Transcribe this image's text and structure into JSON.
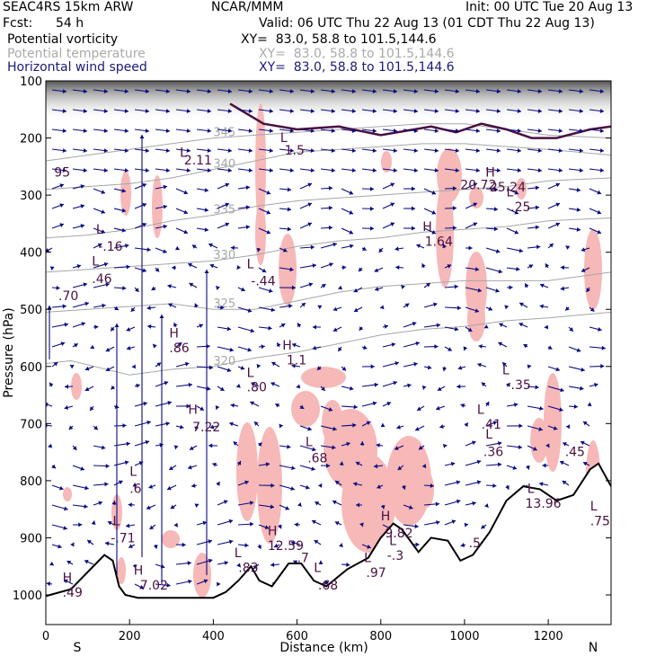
{
  "header": {
    "model": "SEAC4RS 15km ARW",
    "center": "NCAR/MMM",
    "init": "Init: 00 UTC Tue 20 Aug 13",
    "fcst_label": "Fcst:",
    "fcst_value": "54 h",
    "valid": "Valid: 06 UTC Thu 22 Aug 13 (01 CDT Thu 22 Aug 13)",
    "fields": [
      {
        "name": "Potential vorticity",
        "xy": "XY=  83.0, 58.8 to 101.5,144.6"
      },
      {
        "name": "Potential temperature",
        "xy": "XY=  83.0, 58.8 to 101.5,144.6"
      },
      {
        "name": "Horizontal wind speed",
        "xy": "XY=  83.0, 58.8 to 101.5,144.6"
      }
    ]
  },
  "colors": {
    "pv_fill": "#f7b8b8",
    "theta": "#a6a6a6",
    "wind": "#0a0a80",
    "pv_contour": "#4a1040",
    "terrain": "#000000"
  },
  "chart_data": {
    "type": "cross-section",
    "xlabel": "Distance (km)",
    "ylabel": "Pressure (hPa)",
    "xlim": [
      0,
      1350
    ],
    "ylim": [
      1050,
      100
    ],
    "x_ticks": [
      0,
      200,
      400,
      600,
      800,
      1000,
      1200
    ],
    "y_ticks": [
      100,
      200,
      300,
      400,
      500,
      600,
      700,
      800,
      900,
      1000
    ],
    "end_labels": {
      "left": "S",
      "right": "N"
    },
    "terrain": [
      [
        0,
        1002
      ],
      [
        60,
        990
      ],
      [
        100,
        960
      ],
      [
        140,
        930
      ],
      [
        160,
        940
      ],
      [
        175,
        985
      ],
      [
        190,
        1000
      ],
      [
        220,
        1005
      ],
      [
        300,
        1005
      ],
      [
        400,
        1005
      ],
      [
        430,
        995
      ],
      [
        460,
        975
      ],
      [
        490,
        950
      ],
      [
        510,
        975
      ],
      [
        540,
        985
      ],
      [
        580,
        945
      ],
      [
        610,
        945
      ],
      [
        640,
        975
      ],
      [
        670,
        985
      ],
      [
        720,
        955
      ],
      [
        770,
        935
      ],
      [
        800,
        900
      ],
      [
        830,
        875
      ],
      [
        850,
        885
      ],
      [
        870,
        905
      ],
      [
        890,
        925
      ],
      [
        920,
        900
      ],
      [
        960,
        905
      ],
      [
        990,
        940
      ],
      [
        1020,
        930
      ],
      [
        1060,
        890
      ],
      [
        1100,
        835
      ],
      [
        1140,
        810
      ],
      [
        1180,
        815
      ],
      [
        1220,
        835
      ],
      [
        1260,
        825
      ],
      [
        1300,
        780
      ],
      [
        1320,
        770
      ],
      [
        1350,
        810
      ]
    ],
    "theta_contours": [
      {
        "value": "320",
        "points": [
          [
            0,
            595
          ],
          [
            60,
            590
          ],
          [
            200,
            615
          ],
          [
            300,
            605
          ],
          [
            400,
            600
          ],
          [
            500,
            585
          ],
          [
            600,
            575
          ],
          [
            700,
            560
          ],
          [
            800,
            545
          ],
          [
            900,
            535
          ],
          [
            1000,
            530
          ],
          [
            1100,
            520
          ],
          [
            1200,
            515
          ],
          [
            1350,
            505
          ]
        ]
      },
      {
        "value": "325",
        "points": [
          [
            0,
            505
          ],
          [
            100,
            500
          ],
          [
            200,
            495
          ],
          [
            300,
            490
          ],
          [
            400,
            500
          ],
          [
            500,
            500
          ],
          [
            600,
            485
          ],
          [
            700,
            470
          ],
          [
            800,
            460
          ],
          [
            900,
            455
          ],
          [
            1000,
            450
          ],
          [
            1100,
            450
          ],
          [
            1200,
            450
          ],
          [
            1350,
            435
          ]
        ]
      },
      {
        "value": "330",
        "points": [
          [
            0,
            435
          ],
          [
            100,
            430
          ],
          [
            200,
            425
          ],
          [
            300,
            420
          ],
          [
            400,
            415
          ],
          [
            500,
            405
          ],
          [
            600,
            390
          ],
          [
            700,
            380
          ],
          [
            800,
            375
          ],
          [
            900,
            365
          ],
          [
            1000,
            360
          ],
          [
            1100,
            355
          ],
          [
            1200,
            345
          ],
          [
            1350,
            340
          ]
        ]
      },
      {
        "value": "335",
        "points": [
          [
            0,
            375
          ],
          [
            100,
            370
          ],
          [
            200,
            360
          ],
          [
            300,
            345
          ],
          [
            400,
            335
          ],
          [
            500,
            320
          ],
          [
            600,
            310
          ],
          [
            700,
            305
          ],
          [
            800,
            300
          ],
          [
            900,
            295
          ],
          [
            1000,
            290
          ],
          [
            1100,
            285
          ],
          [
            1200,
            275
          ],
          [
            1350,
            270
          ]
        ]
      },
      {
        "value": "340",
        "points": [
          [
            0,
            290
          ],
          [
            100,
            285
          ],
          [
            200,
            280
          ],
          [
            300,
            270
          ],
          [
            400,
            255
          ],
          [
            500,
            240
          ],
          [
            600,
            225
          ],
          [
            700,
            220
          ],
          [
            800,
            215
          ],
          [
            900,
            210
          ],
          [
            1000,
            210
          ],
          [
            1100,
            215
          ],
          [
            1200,
            220
          ],
          [
            1350,
            230
          ]
        ]
      },
      {
        "value": "345",
        "points": [
          [
            0,
            240
          ],
          [
            100,
            230
          ],
          [
            200,
            220
          ],
          [
            300,
            210
          ],
          [
            400,
            200
          ],
          [
            500,
            195
          ],
          [
            600,
            190
          ],
          [
            700,
            185
          ],
          [
            800,
            180
          ],
          [
            900,
            175
          ],
          [
            1000,
            175
          ],
          [
            1100,
            185
          ],
          [
            1200,
            195
          ],
          [
            1350,
            200
          ]
        ]
      }
    ],
    "pv_dynamic_tropopause": [
      [
        440,
        140
      ],
      [
        520,
        175
      ],
      [
        600,
        185
      ],
      [
        700,
        180
      ],
      [
        800,
        195
      ],
      [
        880,
        185
      ],
      [
        920,
        180
      ],
      [
        980,
        190
      ],
      [
        1040,
        175
      ],
      [
        1100,
        185
      ],
      [
        1160,
        200
      ],
      [
        1220,
        200
      ],
      [
        1300,
        185
      ],
      [
        1350,
        180
      ]
    ],
    "pv_labels": [
      {
        "text": "L",
        "x": 120,
        "y": 345
      },
      {
        "text": "-.16",
        "x": 125,
        "y": 380
      },
      {
        "text": "L",
        "x": 110,
        "y": 410
      },
      {
        "text": ".46",
        "x": 110,
        "y": 445
      },
      {
        "text": "L",
        "x": 480,
        "y": 415
      },
      {
        "text": "-.44",
        "x": 490,
        "y": 450
      },
      {
        "text": "H",
        "x": 295,
        "y": 555
      },
      {
        "text": ".86",
        "x": 295,
        "y": 585
      },
      {
        "text": "H",
        "x": 565,
        "y": 580
      },
      {
        "text": "1.1",
        "x": 575,
        "y": 610
      },
      {
        "text": "L",
        "x": 480,
        "y": 635
      },
      {
        "text": ".80",
        "x": 480,
        "y": 665
      },
      {
        "text": "H",
        "x": 340,
        "y": 710
      },
      {
        "text": "7.22",
        "x": 350,
        "y": 745
      },
      {
        "text": "L",
        "x": 620,
        "y": 775
      },
      {
        "text": ".68",
        "x": 625,
        "y": 808
      },
      {
        "text": "L",
        "x": 200,
        "y": 835
      },
      {
        "text": ".6",
        "x": 200,
        "y": 870
      },
      {
        "text": "L",
        "x": 160,
        "y": 935
      },
      {
        "text": "-.71",
        "x": 155,
        "y": 970
      },
      {
        "text": "H",
        "x": 530,
        "y": 955
      },
      {
        "text": "12.59",
        "x": 530,
        "y": 985
      },
      {
        "text": "L",
        "x": 450,
        "y": 1000
      },
      {
        "text": ".83",
        "x": 460,
        "y": 1030
      },
      {
        "text": "H",
        "x": 800,
        "y": 925
      },
      {
        "text": "9.82",
        "x": 810,
        "y": 960
      },
      {
        "text": "L",
        "x": 820,
        "y": 975
      },
      {
        "text": "-.3",
        "x": 815,
        "y": 1005
      },
      {
        "text": "L",
        "x": 1150,
        "y": 870
      },
      {
        "text": "13.96",
        "x": 1145,
        "y": 900
      },
      {
        "text": "L",
        "x": 1300,
        "y": 905
      },
      {
        "text": ".75",
        "x": 1300,
        "y": 935
      },
      {
        "text": "H",
        "x": 40,
        "y": 1050
      },
      {
        "text": ".49",
        "x": 40,
        "y": 1080
      },
      {
        "text": "H",
        "x": 210,
        "y": 1035
      },
      {
        "text": "7.02",
        "x": 225,
        "y": 1065
      },
      {
        "text": "L",
        "x": 1030,
        "y": 710
      },
      {
        "text": ".41",
        "x": 1040,
        "y": 740
      },
      {
        "text": "L",
        "x": 1090,
        "y": 630
      },
      {
        "text": "-.35",
        "x": 1100,
        "y": 660
      },
      {
        "text": "L",
        "x": 1050,
        "y": 760
      },
      {
        "text": ".36",
        "x": 1045,
        "y": 795
      },
      {
        "text": "H",
        "x": 900,
        "y": 340
      },
      {
        "text": "1.64",
        "x": 905,
        "y": 370
      },
      {
        "text": "L",
        "x": 1100,
        "y": 270
      },
      {
        "text": ".25",
        "x": 1110,
        "y": 300
      },
      {
        "text": "H",
        "x": 1050,
        "y": 230
      },
      {
        "text": "25.24",
        "x": 1060,
        "y": 260
      },
      {
        "text": "20.72",
        "x": 990,
        "y": 255
      },
      {
        "text": "L",
        "x": 560,
        "y": 160
      },
      {
        "text": "1.5",
        "x": 570,
        "y": 185
      },
      {
        "text": "L",
        "x": 320,
        "y": 190
      },
      {
        "text": "2.11",
        "x": 330,
        "y": 205
      },
      {
        "text": "L",
        "x": 760,
        "y": 1010
      },
      {
        "text": ".97",
        "x": 765,
        "y": 1040
      },
      {
        "text": "L",
        "x": 640,
        "y": 1030
      },
      {
        "text": ".68",
        "x": 650,
        "y": 1065
      },
      {
        "text": ".7",
        "x": 600,
        "y": 1010
      },
      {
        "text": ".5",
        "x": 1010,
        "y": 980
      },
      {
        "text": ".45",
        "x": 1240,
        "y": 795
      },
      {
        "text": ".70",
        "x": 30,
        "y": 480
      },
      {
        "text": "95",
        "x": 20,
        "y": 230
      }
    ]
  }
}
